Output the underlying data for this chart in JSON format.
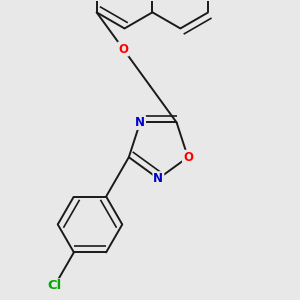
{
  "background_color": "#e8e8e8",
  "bond_color": "#1a1a1a",
  "bond_width": 1.4,
  "dbo": 0.055,
  "atom_colors": {
    "O": "#ff0000",
    "N": "#0000cc",
    "Cl": "#00aa00",
    "C": "#1a1a1a"
  },
  "font_size_atom": 8.5,
  "fig_size": [
    3.0,
    3.0
  ],
  "dpi": 100
}
